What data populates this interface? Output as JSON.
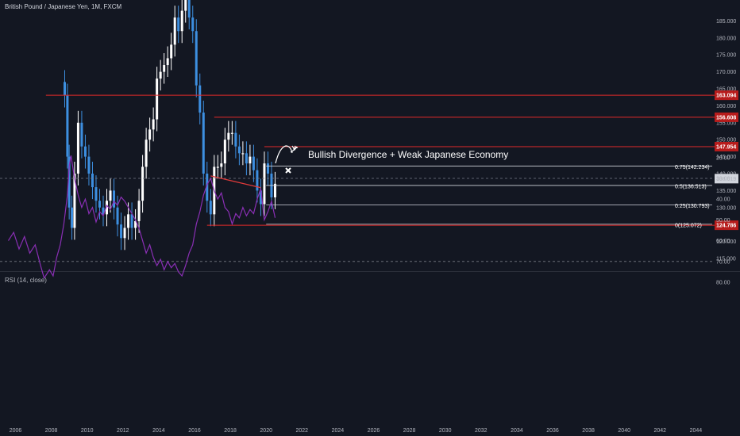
{
  "symbol_title": "British Pound / Japanese Yen, 1M, FXCM",
  "rsi_title": "RSI (14, close)",
  "colors": {
    "background": "#131722",
    "up_candle": "#ffffff",
    "down_candle": "#3d8fe0",
    "level_line": "#e02a2a",
    "fib_line": "#d1d4dc",
    "rsi_line": "#8a2fb5",
    "rsi_band": "#2a1d45",
    "divergence_line": "#e03a3a",
    "price_badge": "#b71c1c",
    "current_badge": "#d1d4dc"
  },
  "annotation": {
    "text": "Bullish Divergence + Weak Japanese Economy",
    "x_icon": "close-icon"
  },
  "current_price": "138.519",
  "chart_data": [
    {
      "type": "candlestick",
      "title": "British Pound / Japanese Yen, 1M, FXCM",
      "x_ticks": [
        "2006",
        "2008",
        "2010",
        "2012",
        "2014",
        "2016",
        "2018",
        "2020",
        "2022",
        "2024",
        "2026",
        "2028",
        "2030",
        "2032",
        "2034",
        "2036",
        "2038",
        "2040",
        "2042",
        "2044"
      ],
      "y_ticks": [
        "115.000",
        "120.000",
        "125.000",
        "130.000",
        "135.000",
        "140.000",
        "145.000",
        "150.000",
        "155.000",
        "160.000",
        "165.000",
        "170.000",
        "175.000",
        "180.000",
        "185.000"
      ],
      "ylim": [
        112,
        190
      ],
      "series_close": [
        {
          "x": 2008.75,
          "y": 163
        },
        {
          "x": 2008.9,
          "y": 145
        },
        {
          "x": 2009.0,
          "y": 130
        },
        {
          "x": 2009.15,
          "y": 124
        },
        {
          "x": 2009.3,
          "y": 140
        },
        {
          "x": 2009.5,
          "y": 155
        },
        {
          "x": 2009.7,
          "y": 148
        },
        {
          "x": 2009.9,
          "y": 145
        },
        {
          "x": 2010.1,
          "y": 140
        },
        {
          "x": 2010.3,
          "y": 136
        },
        {
          "x": 2010.5,
          "y": 132
        },
        {
          "x": 2010.7,
          "y": 130
        },
        {
          "x": 2010.9,
          "y": 128
        },
        {
          "x": 2011.1,
          "y": 132
        },
        {
          "x": 2011.3,
          "y": 135
        },
        {
          "x": 2011.5,
          "y": 130
        },
        {
          "x": 2011.7,
          "y": 125
        },
        {
          "x": 2011.9,
          "y": 121
        },
        {
          "x": 2012.1,
          "y": 124
        },
        {
          "x": 2012.3,
          "y": 128
        },
        {
          "x": 2012.5,
          "y": 124
        },
        {
          "x": 2012.7,
          "y": 126
        },
        {
          "x": 2012.9,
          "y": 132
        },
        {
          "x": 2013.1,
          "y": 142
        },
        {
          "x": 2013.3,
          "y": 150
        },
        {
          "x": 2013.5,
          "y": 153
        },
        {
          "x": 2013.7,
          "y": 156
        },
        {
          "x": 2013.9,
          "y": 168
        },
        {
          "x": 2014.1,
          "y": 170
        },
        {
          "x": 2014.3,
          "y": 172
        },
        {
          "x": 2014.5,
          "y": 174
        },
        {
          "x": 2014.7,
          "y": 178
        },
        {
          "x": 2014.9,
          "y": 186
        },
        {
          "x": 2015.1,
          "y": 182
        },
        {
          "x": 2015.3,
          "y": 188
        },
        {
          "x": 2015.5,
          "y": 192
        },
        {
          "x": 2015.7,
          "y": 186
        },
        {
          "x": 2015.9,
          "y": 182
        },
        {
          "x": 2016.1,
          "y": 166
        },
        {
          "x": 2016.3,
          "y": 158
        },
        {
          "x": 2016.5,
          "y": 140
        },
        {
          "x": 2016.7,
          "y": 132
        },
        {
          "x": 2016.9,
          "y": 128
        },
        {
          "x": 2017.1,
          "y": 142
        },
        {
          "x": 2017.3,
          "y": 142
        },
        {
          "x": 2017.5,
          "y": 143
        },
        {
          "x": 2017.7,
          "y": 150
        },
        {
          "x": 2017.9,
          "y": 152
        },
        {
          "x": 2018.1,
          "y": 152
        },
        {
          "x": 2018.3,
          "y": 148
        },
        {
          "x": 2018.5,
          "y": 146
        },
        {
          "x": 2018.7,
          "y": 146
        },
        {
          "x": 2018.9,
          "y": 143
        },
        {
          "x": 2019.1,
          "y": 145
        },
        {
          "x": 2019.3,
          "y": 141
        },
        {
          "x": 2019.5,
          "y": 135
        },
        {
          "x": 2019.7,
          "y": 131
        },
        {
          "x": 2019.9,
          "y": 143
        },
        {
          "x": 2020.1,
          "y": 140
        },
        {
          "x": 2020.3,
          "y": 133
        },
        {
          "x": 2020.5,
          "y": 137
        }
      ],
      "levels": [
        {
          "price": 163.094,
          "label": "163.094"
        },
        {
          "price": 156.608,
          "label": "156.608"
        },
        {
          "price": 147.954,
          "label": "147.954"
        },
        {
          "price": 124.786,
          "label": "124.786"
        }
      ],
      "fib_levels": [
        {
          "price": 142.234,
          "label": "0.75(142.234)"
        },
        {
          "price": 136.513,
          "label": "0.5(136.513)"
        },
        {
          "price": 130.793,
          "label": "0.25(130.793)"
        },
        {
          "price": 125.072,
          "label": "0(125.072)"
        }
      ]
    },
    {
      "type": "line",
      "title": "RSI (14, close)",
      "y_ticks": [
        "20.00",
        "30.00",
        "40.00",
        "50.00",
        "60.00",
        "70.00",
        "80.00"
      ],
      "ylim": [
        15,
        83
      ],
      "bands": [
        30,
        70
      ],
      "series": [
        {
          "values": [
            {
              "x": 2005.6,
              "y": 60
            },
            {
              "x": 2005.9,
              "y": 56
            },
            {
              "x": 2006.2,
              "y": 64
            },
            {
              "x": 2006.5,
              "y": 58
            },
            {
              "x": 2006.8,
              "y": 66
            },
            {
              "x": 2007.1,
              "y": 62
            },
            {
              "x": 2007.4,
              "y": 72
            },
            {
              "x": 2007.6,
              "y": 78
            },
            {
              "x": 2007.9,
              "y": 74
            },
            {
              "x": 2008.1,
              "y": 77
            },
            {
              "x": 2008.3,
              "y": 68
            },
            {
              "x": 2008.5,
              "y": 62
            },
            {
              "x": 2008.7,
              "y": 52
            },
            {
              "x": 2008.9,
              "y": 38
            },
            {
              "x": 2009.0,
              "y": 24
            },
            {
              "x": 2009.1,
              "y": 19
            },
            {
              "x": 2009.3,
              "y": 30
            },
            {
              "x": 2009.5,
              "y": 38
            },
            {
              "x": 2009.7,
              "y": 44
            },
            {
              "x": 2009.9,
              "y": 40
            },
            {
              "x": 2010.1,
              "y": 47
            },
            {
              "x": 2010.3,
              "y": 44
            },
            {
              "x": 2010.5,
              "y": 51
            },
            {
              "x": 2010.7,
              "y": 46
            },
            {
              "x": 2010.9,
              "y": 48
            },
            {
              "x": 2011.1,
              "y": 43
            },
            {
              "x": 2011.3,
              "y": 45
            },
            {
              "x": 2011.5,
              "y": 41
            },
            {
              "x": 2011.7,
              "y": 43
            },
            {
              "x": 2011.9,
              "y": 39
            },
            {
              "x": 2012.1,
              "y": 41
            },
            {
              "x": 2012.3,
              "y": 44
            },
            {
              "x": 2012.5,
              "y": 47
            },
            {
              "x": 2012.7,
              "y": 50
            },
            {
              "x": 2012.9,
              "y": 54
            },
            {
              "x": 2013.1,
              "y": 60
            },
            {
              "x": 2013.3,
              "y": 66
            },
            {
              "x": 2013.5,
              "y": 62
            },
            {
              "x": 2013.7,
              "y": 68
            },
            {
              "x": 2013.9,
              "y": 72
            },
            {
              "x": 2014.1,
              "y": 69
            },
            {
              "x": 2014.3,
              "y": 74
            },
            {
              "x": 2014.5,
              "y": 70
            },
            {
              "x": 2014.7,
              "y": 73
            },
            {
              "x": 2014.9,
              "y": 71
            },
            {
              "x": 2015.1,
              "y": 75
            },
            {
              "x": 2015.3,
              "y": 77
            },
            {
              "x": 2015.5,
              "y": 72
            },
            {
              "x": 2015.7,
              "y": 66
            },
            {
              "x": 2015.9,
              "y": 62
            },
            {
              "x": 2016.1,
              "y": 52
            },
            {
              "x": 2016.3,
              "y": 46
            },
            {
              "x": 2016.5,
              "y": 38
            },
            {
              "x": 2016.7,
              "y": 33
            },
            {
              "x": 2016.9,
              "y": 30
            },
            {
              "x": 2017.1,
              "y": 36
            },
            {
              "x": 2017.3,
              "y": 40
            },
            {
              "x": 2017.5,
              "y": 37
            },
            {
              "x": 2017.7,
              "y": 44
            },
            {
              "x": 2017.9,
              "y": 46
            },
            {
              "x": 2018.1,
              "y": 52
            },
            {
              "x": 2018.3,
              "y": 47
            },
            {
              "x": 2018.5,
              "y": 49
            },
            {
              "x": 2018.7,
              "y": 44
            },
            {
              "x": 2018.9,
              "y": 48
            },
            {
              "x": 2019.1,
              "y": 45
            },
            {
              "x": 2019.3,
              "y": 47
            },
            {
              "x": 2019.5,
              "y": 40
            },
            {
              "x": 2019.7,
              "y": 35
            },
            {
              "x": 2019.9,
              "y": 50
            },
            {
              "x": 2020.1,
              "y": 46
            },
            {
              "x": 2020.3,
              "y": 41
            },
            {
              "x": 2020.5,
              "y": 49
            }
          ]
        }
      ]
    }
  ]
}
